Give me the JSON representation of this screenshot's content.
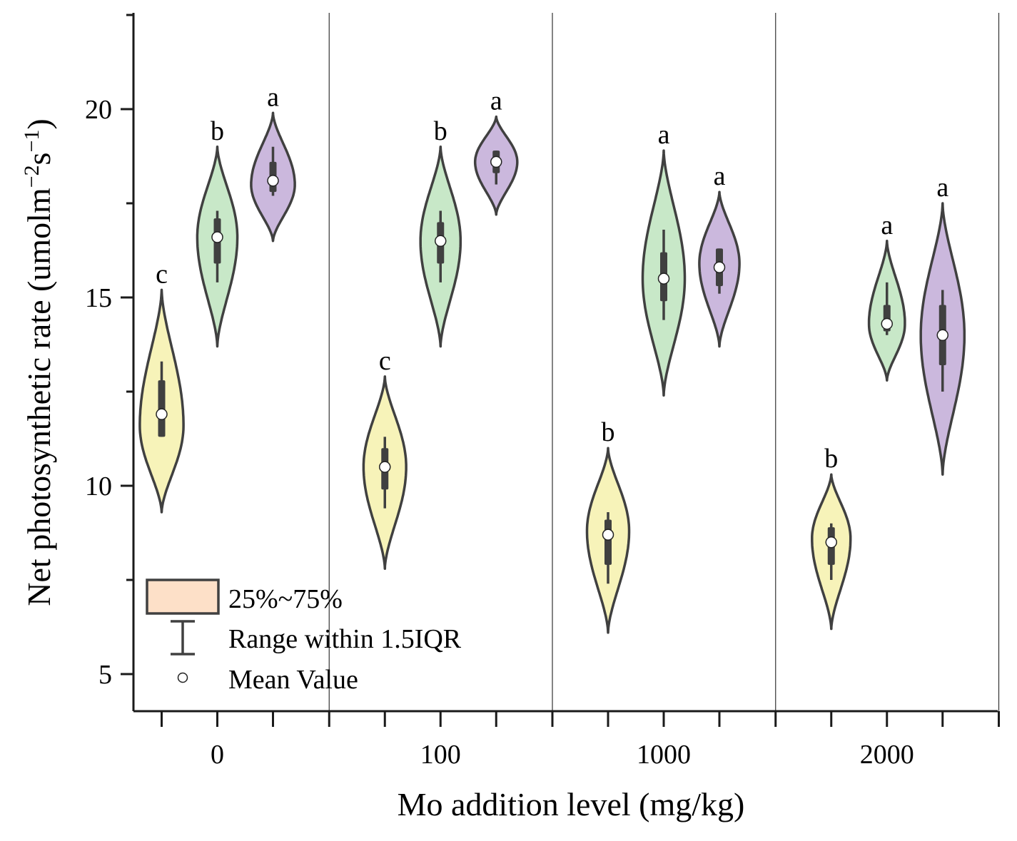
{
  "chart_data": {
    "type": "violin",
    "xlabel": "Mo addition level (mg/kg)",
    "ylabel": "Net photosynthetic rate (umolm",
    "ylabel_sup1": "−2",
    "ylabel_mid": "s",
    "ylabel_sup2": "−1",
    "ylabel_end": ")",
    "ylim": [
      4,
      22.5
    ],
    "yticks": [
      5,
      10,
      15,
      20
    ],
    "categories": [
      "0",
      "100",
      "1000",
      "2000"
    ],
    "series_colors": [
      "#f7f3b9",
      "#c8e8c8",
      "#cbb8dd"
    ],
    "outline_color": "#404040",
    "groups": [
      {
        "category": "0",
        "violins": [
          {
            "min": 9.3,
            "max": 15.2,
            "mode": 11.6,
            "width": 0.85,
            "q1": 11.3,
            "q3": 12.8,
            "whisker_low": 11.3,
            "whisker_high": 13.3,
            "mean": 11.9,
            "label": "c"
          },
          {
            "min": 13.7,
            "max": 19.0,
            "mode": 16.6,
            "width": 0.78,
            "q1": 15.9,
            "q3": 17.1,
            "whisker_low": 15.4,
            "whisker_high": 17.3,
            "mean": 16.6,
            "label": "b"
          },
          {
            "min": 16.5,
            "max": 19.9,
            "mode": 18.0,
            "width": 0.85,
            "q1": 17.8,
            "q3": 18.6,
            "whisker_low": 17.7,
            "whisker_high": 19.0,
            "mean": 18.1,
            "label": "a"
          }
        ]
      },
      {
        "category": "100",
        "violins": [
          {
            "min": 7.8,
            "max": 12.9,
            "mode": 10.5,
            "width": 0.83,
            "q1": 9.9,
            "q3": 11.0,
            "whisker_low": 9.4,
            "whisker_high": 11.3,
            "mean": 10.5,
            "label": "c"
          },
          {
            "min": 13.7,
            "max": 19.0,
            "mode": 16.5,
            "width": 0.78,
            "q1": 15.9,
            "q3": 17.0,
            "whisker_low": 15.4,
            "whisker_high": 17.3,
            "mean": 16.5,
            "label": "b"
          },
          {
            "min": 17.2,
            "max": 19.8,
            "mode": 18.6,
            "width": 0.82,
            "q1": 18.3,
            "q3": 18.9,
            "whisker_low": 18.0,
            "whisker_high": 18.9,
            "mean": 18.6,
            "label": "a"
          }
        ]
      },
      {
        "category": "1000",
        "violins": [
          {
            "min": 6.1,
            "max": 11.0,
            "mode": 8.8,
            "width": 0.82,
            "q1": 7.9,
            "q3": 9.1,
            "whisker_low": 7.4,
            "whisker_high": 9.3,
            "mean": 8.7,
            "label": "b"
          },
          {
            "min": 12.4,
            "max": 18.9,
            "mode": 15.5,
            "width": 0.82,
            "q1": 14.9,
            "q3": 16.2,
            "whisker_low": 14.4,
            "whisker_high": 16.8,
            "mean": 15.5,
            "label": "a"
          },
          {
            "min": 13.7,
            "max": 17.8,
            "mode": 15.9,
            "width": 0.78,
            "q1": 15.3,
            "q3": 16.3,
            "whisker_low": 15.1,
            "whisker_high": 16.3,
            "mean": 15.8,
            "label": "a"
          }
        ]
      },
      {
        "category": "2000",
        "violins": [
          {
            "min": 6.2,
            "max": 10.3,
            "mode": 8.6,
            "width": 0.75,
            "q1": 7.9,
            "q3": 8.9,
            "whisker_low": 7.5,
            "whisker_high": 9.0,
            "mean": 8.5,
            "label": "b"
          },
          {
            "min": 12.8,
            "max": 16.5,
            "mode": 14.3,
            "width": 0.7,
            "q1": 14.1,
            "q3": 14.8,
            "whisker_low": 14.0,
            "whisker_high": 15.4,
            "mean": 14.3,
            "label": "a"
          },
          {
            "min": 10.3,
            "max": 17.5,
            "mode": 14.0,
            "width": 0.85,
            "q1": 13.2,
            "q3": 14.8,
            "whisker_low": 12.5,
            "whisker_high": 15.2,
            "mean": 14.0,
            "label": "a"
          }
        ]
      }
    ],
    "legend": {
      "position": "bottom-left",
      "items": [
        {
          "label": "25%~75%",
          "kind": "box",
          "color": "#fde0c8"
        },
        {
          "label": "Range within 1.5IQR",
          "kind": "whisker"
        },
        {
          "label": "Mean Value",
          "kind": "mean"
        }
      ]
    }
  }
}
